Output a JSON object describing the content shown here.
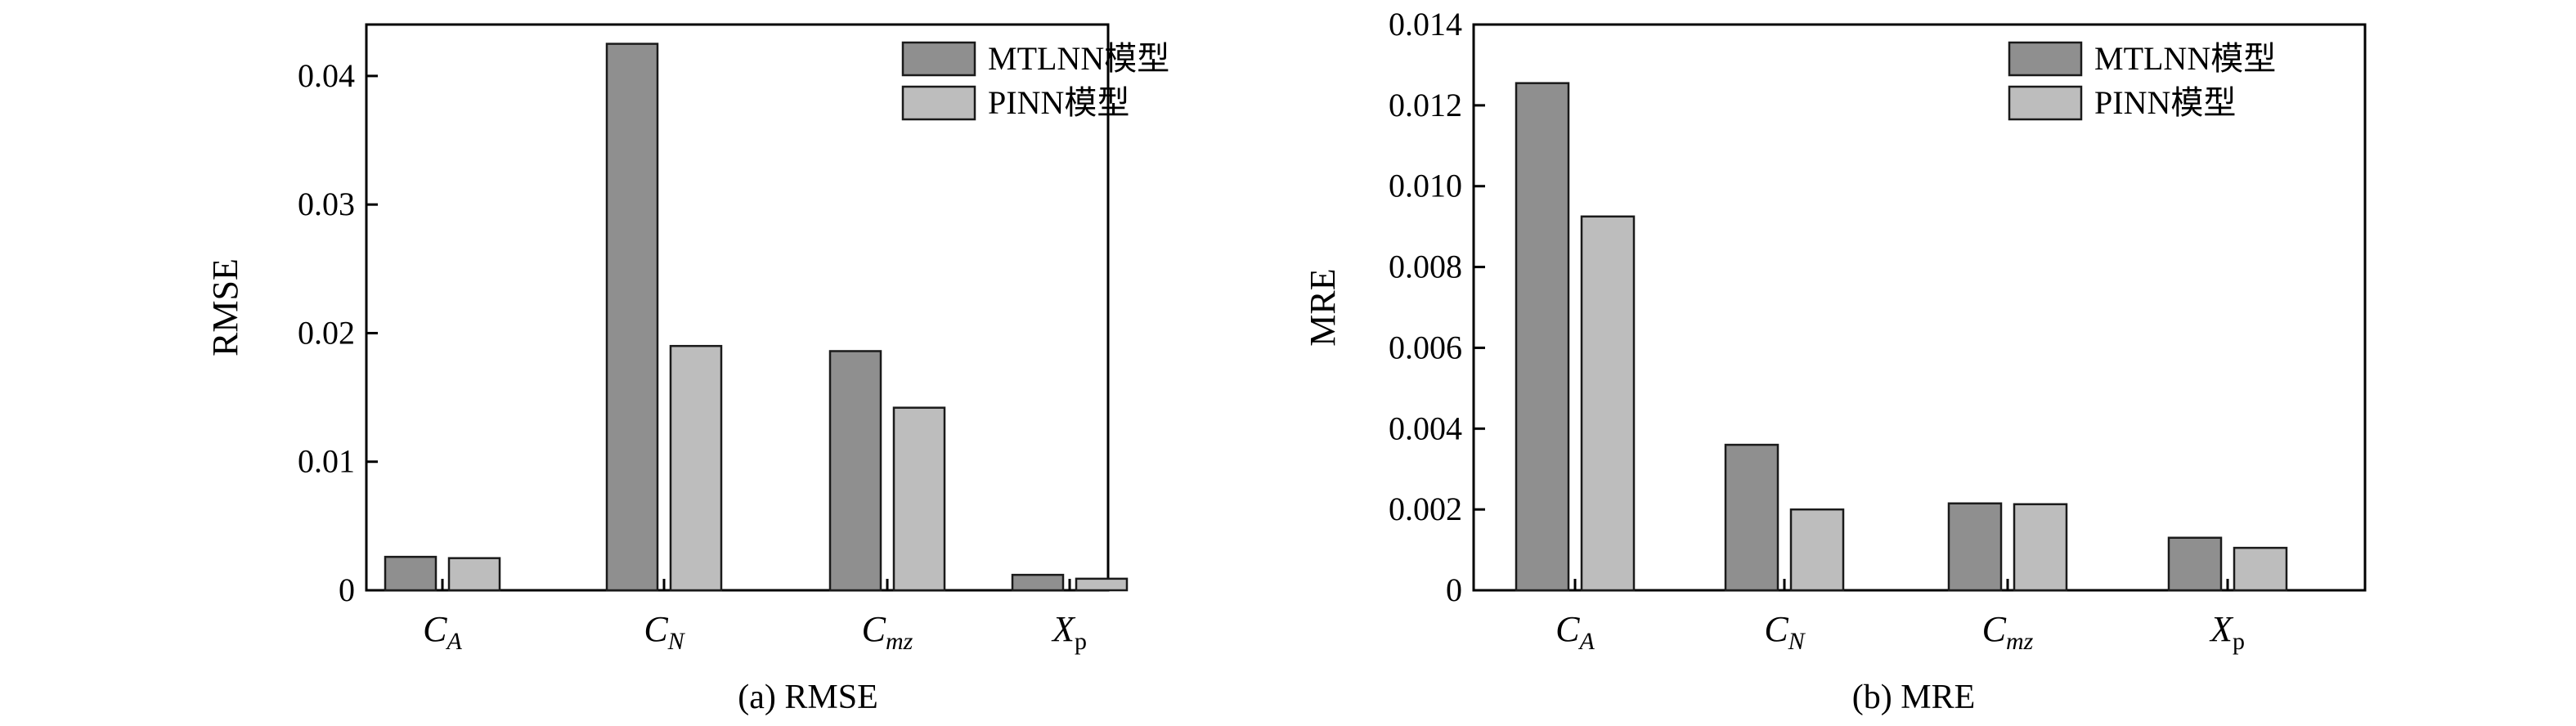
{
  "colors": {
    "mtlnn": "#8f8f8f",
    "pinn": "#bdbdbd",
    "edge": "#1a1a1a",
    "axis": "#000000"
  },
  "chart_data": [
    {
      "type": "bar",
      "caption": "(a) RMSE",
      "ylabel": "RMSE",
      "xlabel": "",
      "ylim": [
        0,
        0.044
      ],
      "yticks": [
        0,
        0.01,
        0.02,
        0.03,
        0.04
      ],
      "ytick_labels": [
        "0",
        "0.01",
        "0.02",
        "0.03",
        "0.04"
      ],
      "categories": [
        {
          "main": "C",
          "sub": "A",
          "sub_italic": true
        },
        {
          "main": "C",
          "sub": "N",
          "sub_italic": true
        },
        {
          "main": "C",
          "sub": "mz",
          "sub_italic": true
        },
        {
          "main": "X",
          "sub": "p",
          "sub_italic": false
        }
      ],
      "series": [
        {
          "name": "MTLNN模型",
          "color_key": "mtlnn",
          "values": [
            0.0026,
            0.0425,
            0.0186,
            0.0012
          ]
        },
        {
          "name": "PINN模型",
          "color_key": "pinn",
          "values": [
            0.0025,
            0.019,
            0.0142,
            0.0009
          ]
        }
      ],
      "legend": "top-right"
    },
    {
      "type": "bar",
      "caption": "(b) MRE",
      "ylabel": "MRE",
      "xlabel": "",
      "ylim": [
        0,
        0.014
      ],
      "yticks": [
        0,
        0.002,
        0.004,
        0.006,
        0.008,
        0.01,
        0.012,
        0.014
      ],
      "ytick_labels": [
        "0",
        "0.002",
        "0.004",
        "0.006",
        "0.008",
        "0.010",
        "0.012",
        "0.014"
      ],
      "categories": [
        {
          "main": "C",
          "sub": "A",
          "sub_italic": true
        },
        {
          "main": "C",
          "sub": "N",
          "sub_italic": true
        },
        {
          "main": "C",
          "sub": "mz",
          "sub_italic": true
        },
        {
          "main": "X",
          "sub": "p",
          "sub_italic": false
        }
      ],
      "series": [
        {
          "name": "MTLNN模型",
          "color_key": "mtlnn",
          "values": [
            0.01255,
            0.0036,
            0.00215,
            0.0013
          ]
        },
        {
          "name": "PINN模型",
          "color_key": "pinn",
          "values": [
            0.00925,
            0.002,
            0.00213,
            0.00105
          ]
        }
      ],
      "legend": "top-right"
    }
  ]
}
